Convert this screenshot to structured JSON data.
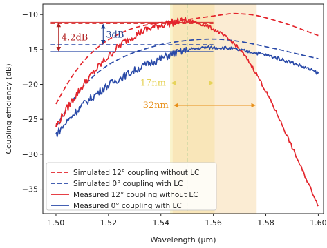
{
  "chart_data": {
    "type": "line",
    "xlabel": "Wavelength (μm)",
    "ylabel": "Coupling efficiency (dB)",
    "xlim": [
      1.495,
      1.602
    ],
    "ylim": [
      -38.5,
      -8.5
    ],
    "xticks": [
      1.5,
      1.52,
      1.54,
      1.56,
      1.58,
      1.6
    ],
    "xtick_labels": [
      "1.50",
      "1.52",
      "1.54",
      "1.56",
      "1.58",
      "1.60"
    ],
    "yticks": [
      -35,
      -30,
      -25,
      -20,
      -15,
      -10
    ],
    "ytick_labels": [
      "−35",
      "−30",
      "−25",
      "−20",
      "−15",
      "−10"
    ],
    "grid": false,
    "legend_position": "lower-left",
    "center_wavelength": 1.55,
    "bands": [
      {
        "x0": 1.5435,
        "x1": 1.5605,
        "color": "#f5eaa0",
        "opacity": 0.55,
        "label": "17nm",
        "label_color": "#e6d35a",
        "arrow_y": -19.8
      },
      {
        "x0": 1.5445,
        "x1": 1.5765,
        "color": "#f7d9a8",
        "opacity": 0.5,
        "label": "32nm",
        "label_color": "#e8901a",
        "arrow_y": -23.0
      }
    ],
    "annotations": [
      {
        "label": "4.2dB",
        "color": "#b22222",
        "x": 1.501,
        "y_top": -11.1,
        "y_bottom": -15.3
      },
      {
        "label": "3dB",
        "color": "#1f3f8f",
        "x": 1.518,
        "y_top": -11.3,
        "y_bottom": -14.3
      }
    ],
    "ref_lines": [
      {
        "y": -11.1,
        "x0": 1.498,
        "x1": 1.56,
        "color": "#d62728",
        "style": "solid"
      },
      {
        "y": -11.3,
        "x0": 1.498,
        "x1": 1.56,
        "color": "#d62728",
        "style": "dashed"
      },
      {
        "y": -15.3,
        "x0": 1.498,
        "x1": 1.56,
        "color": "#2a4aa8",
        "style": "solid"
      },
      {
        "y": -14.3,
        "x0": 1.498,
        "x1": 1.56,
        "color": "#2a4aa8",
        "style": "dashed"
      }
    ],
    "series": [
      {
        "name": "Simulated 12° coupling without LC",
        "color": "#e3242b",
        "style": "dashed",
        "noisy": false,
        "x": [
          1.5,
          1.505,
          1.51,
          1.515,
          1.52,
          1.525,
          1.53,
          1.535,
          1.54,
          1.545,
          1.55,
          1.555,
          1.56,
          1.565,
          1.568,
          1.575,
          1.58,
          1.585,
          1.59,
          1.595,
          1.6
        ],
        "y": [
          -22.8,
          -19.5,
          -16.9,
          -15.0,
          -13.6,
          -12.6,
          -11.9,
          -11.45,
          -11.15,
          -10.9,
          -10.7,
          -10.45,
          -10.2,
          -9.95,
          -9.85,
          -10.05,
          -10.45,
          -11.0,
          -11.6,
          -12.3,
          -13.0
        ]
      },
      {
        "name": "Simulated 0° coupling with LC",
        "color": "#2a4aa8",
        "style": "dashed",
        "noisy": false,
        "x": [
          1.5,
          1.505,
          1.51,
          1.515,
          1.52,
          1.525,
          1.53,
          1.535,
          1.54,
          1.545,
          1.55,
          1.555,
          1.56,
          1.565,
          1.57,
          1.575,
          1.58,
          1.585,
          1.59,
          1.595,
          1.6
        ],
        "y": [
          -26.1,
          -23.0,
          -20.5,
          -18.6,
          -17.2,
          -16.2,
          -15.4,
          -14.8,
          -14.3,
          -13.95,
          -13.7,
          -13.55,
          -13.5,
          -13.6,
          -13.85,
          -14.2,
          -14.6,
          -15.0,
          -15.45,
          -15.9,
          -16.3
        ]
      },
      {
        "name": "Measured 12° coupling without LC",
        "color": "#e3242b",
        "style": "solid",
        "noisy": true,
        "x": [
          1.5,
          1.505,
          1.51,
          1.515,
          1.52,
          1.525,
          1.53,
          1.535,
          1.54,
          1.545,
          1.55,
          1.555,
          1.56,
          1.565,
          1.57,
          1.575,
          1.58,
          1.585,
          1.59,
          1.595,
          1.6
        ],
        "y": [
          -26.0,
          -23.0,
          -20.3,
          -18.0,
          -16.0,
          -14.2,
          -13.0,
          -12.1,
          -11.5,
          -11.1,
          -10.9,
          -11.3,
          -12.1,
          -13.3,
          -15.0,
          -17.6,
          -21.0,
          -24.8,
          -29.0,
          -33.2,
          -37.3
        ]
      },
      {
        "name": "Measured 0° coupling with LC",
        "color": "#2a4aa8",
        "style": "solid",
        "noisy": true,
        "x": [
          1.5,
          1.505,
          1.51,
          1.515,
          1.52,
          1.525,
          1.53,
          1.535,
          1.54,
          1.545,
          1.55,
          1.555,
          1.56,
          1.565,
          1.57,
          1.575,
          1.58,
          1.585,
          1.59,
          1.595,
          1.6
        ],
        "y": [
          -27.2,
          -25.0,
          -23.0,
          -21.5,
          -20.1,
          -19.0,
          -18.0,
          -17.1,
          -16.3,
          -15.6,
          -15.1,
          -14.8,
          -14.7,
          -14.8,
          -15.1,
          -15.4,
          -15.8,
          -16.3,
          -16.9,
          -17.6,
          -18.4
        ]
      }
    ]
  }
}
